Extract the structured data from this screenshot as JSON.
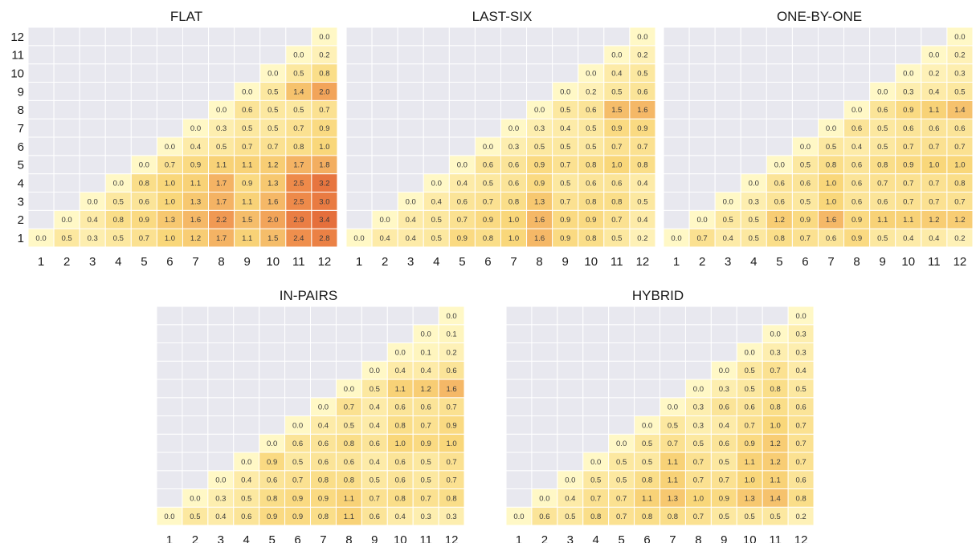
{
  "colors": {
    "empty_cell": "#e8e8ef",
    "cell_border": "#ffffff",
    "low": "#fff8c6",
    "mid": "#f9d77a",
    "high": "#ee8a4a",
    "max": "#e56f3c"
  },
  "ticks": [
    "1",
    "2",
    "3",
    "4",
    "5",
    "6",
    "7",
    "8",
    "9",
    "10",
    "11",
    "12"
  ],
  "chart_data": [
    {
      "type": "heatmap",
      "title": "FLAT",
      "rows": [
        "1",
        "2",
        "3",
        "4",
        "5",
        "6",
        "7",
        "8",
        "9",
        "10",
        "11",
        "12"
      ],
      "columns": [
        "1",
        "2",
        "3",
        "4",
        "5",
        "6",
        "7",
        "8",
        "9",
        "10",
        "11",
        "12"
      ],
      "values": [
        [
          "0.0",
          "0.5",
          "0.3",
          "0.5",
          "0.7",
          "1.0",
          "1.2",
          "1.7",
          "1.1",
          "1.5",
          "2.4",
          "2.8"
        ],
        [
          null,
          "0.0",
          "0.4",
          "0.8",
          "0.9",
          "1.3",
          "1.6",
          "2.2",
          "1.5",
          "2.0",
          "2.9",
          "3.4"
        ],
        [
          null,
          null,
          "0.0",
          "0.5",
          "0.6",
          "1.0",
          "1.3",
          "1.7",
          "1.1",
          "1.6",
          "2.5",
          "3.0"
        ],
        [
          null,
          null,
          null,
          "0.0",
          "0.8",
          "1.0",
          "1.1",
          "1.7",
          "0.9",
          "1.3",
          "2.5",
          "3.2"
        ],
        [
          null,
          null,
          null,
          null,
          "0.0",
          "0.7",
          "0.9",
          "1.1",
          "1.1",
          "1.2",
          "1.7",
          "1.8"
        ],
        [
          null,
          null,
          null,
          null,
          null,
          "0.0",
          "0.4",
          "0.5",
          "0.7",
          "0.7",
          "0.8",
          "1.0"
        ],
        [
          null,
          null,
          null,
          null,
          null,
          null,
          "0.0",
          "0.3",
          "0.5",
          "0.5",
          "0.7",
          "0.9"
        ],
        [
          null,
          null,
          null,
          null,
          null,
          null,
          null,
          "0.0",
          "0.6",
          "0.5",
          "0.5",
          "0.7"
        ],
        [
          null,
          null,
          null,
          null,
          null,
          null,
          null,
          null,
          "0.0",
          "0.5",
          "1.4",
          "2.0"
        ],
        [
          null,
          null,
          null,
          null,
          null,
          null,
          null,
          null,
          null,
          "0.0",
          "0.5",
          "0.8"
        ],
        [
          null,
          null,
          null,
          null,
          null,
          null,
          null,
          null,
          null,
          null,
          "0.0",
          "0.2"
        ],
        [
          null,
          null,
          null,
          null,
          null,
          null,
          null,
          null,
          null,
          null,
          null,
          "0.0"
        ]
      ]
    },
    {
      "type": "heatmap",
      "title": "LAST-SIX",
      "rows": [
        "1",
        "2",
        "3",
        "4",
        "5",
        "6",
        "7",
        "8",
        "9",
        "10",
        "11",
        "12"
      ],
      "columns": [
        "1",
        "2",
        "3",
        "4",
        "5",
        "6",
        "7",
        "8",
        "9",
        "10",
        "11",
        "12"
      ],
      "values": [
        [
          "0.0",
          "0.4",
          "0.4",
          "0.5",
          "0.9",
          "0.8",
          "1.0",
          "1.6",
          "0.9",
          "0.8",
          "0.5",
          "0.2"
        ],
        [
          null,
          "0.0",
          "0.4",
          "0.5",
          "0.7",
          "0.9",
          "1.0",
          "1.6",
          "0.9",
          "0.9",
          "0.7",
          "0.4"
        ],
        [
          null,
          null,
          "0.0",
          "0.4",
          "0.6",
          "0.7",
          "0.8",
          "1.3",
          "0.7",
          "0.8",
          "0.8",
          "0.5"
        ],
        [
          null,
          null,
          null,
          "0.0",
          "0.4",
          "0.5",
          "0.6",
          "0.9",
          "0.5",
          "0.6",
          "0.6",
          "0.4"
        ],
        [
          null,
          null,
          null,
          null,
          "0.0",
          "0.6",
          "0.6",
          "0.9",
          "0.7",
          "0.8",
          "1.0",
          "0.8"
        ],
        [
          null,
          null,
          null,
          null,
          null,
          "0.0",
          "0.3",
          "0.5",
          "0.5",
          "0.5",
          "0.7",
          "0.7"
        ],
        [
          null,
          null,
          null,
          null,
          null,
          null,
          "0.0",
          "0.3",
          "0.4",
          "0.5",
          "0.9",
          "0.9"
        ],
        [
          null,
          null,
          null,
          null,
          null,
          null,
          null,
          "0.0",
          "0.5",
          "0.6",
          "1.5",
          "1.6"
        ],
        [
          null,
          null,
          null,
          null,
          null,
          null,
          null,
          null,
          "0.0",
          "0.2",
          "0.5",
          "0.6"
        ],
        [
          null,
          null,
          null,
          null,
          null,
          null,
          null,
          null,
          null,
          "0.0",
          "0.4",
          "0.5"
        ],
        [
          null,
          null,
          null,
          null,
          null,
          null,
          null,
          null,
          null,
          null,
          "0.0",
          "0.2"
        ],
        [
          null,
          null,
          null,
          null,
          null,
          null,
          null,
          null,
          null,
          null,
          null,
          "0.0"
        ]
      ]
    },
    {
      "type": "heatmap",
      "title": "ONE-BY-ONE",
      "rows": [
        "1",
        "2",
        "3",
        "4",
        "5",
        "6",
        "7",
        "8",
        "9",
        "10",
        "11",
        "12"
      ],
      "columns": [
        "1",
        "2",
        "3",
        "4",
        "5",
        "6",
        "7",
        "8",
        "9",
        "10",
        "11",
        "12"
      ],
      "values": [
        [
          "0.0",
          "0.7",
          "0.4",
          "0.5",
          "0.8",
          "0.7",
          "0.6",
          "0.9",
          "0.5",
          "0.4",
          "0.4",
          "0.2"
        ],
        [
          null,
          "0.0",
          "0.5",
          "0.5",
          "1.2",
          "0.9",
          "1.6",
          "0.9",
          "1.1",
          "1.1",
          "1.2",
          "1.2"
        ],
        [
          null,
          null,
          "0.0",
          "0.3",
          "0.6",
          "0.5",
          "1.0",
          "0.6",
          "0.6",
          "0.7",
          "0.7",
          "0.7"
        ],
        [
          null,
          null,
          null,
          "0.0",
          "0.6",
          "0.6",
          "1.0",
          "0.6",
          "0.7",
          "0.7",
          "0.7",
          "0.8"
        ],
        [
          null,
          null,
          null,
          null,
          "0.0",
          "0.5",
          "0.8",
          "0.6",
          "0.8",
          "0.9",
          "1.0",
          "1.0"
        ],
        [
          null,
          null,
          null,
          null,
          null,
          "0.0",
          "0.5",
          "0.4",
          "0.5",
          "0.7",
          "0.7",
          "0.7"
        ],
        [
          null,
          null,
          null,
          null,
          null,
          null,
          "0.0",
          "0.6",
          "0.5",
          "0.6",
          "0.6",
          "0.6"
        ],
        [
          null,
          null,
          null,
          null,
          null,
          null,
          null,
          "0.0",
          "0.6",
          "0.9",
          "1.1",
          "1.4"
        ],
        [
          null,
          null,
          null,
          null,
          null,
          null,
          null,
          null,
          "0.0",
          "0.3",
          "0.4",
          "0.5"
        ],
        [
          null,
          null,
          null,
          null,
          null,
          null,
          null,
          null,
          null,
          "0.0",
          "0.2",
          "0.3"
        ],
        [
          null,
          null,
          null,
          null,
          null,
          null,
          null,
          null,
          null,
          null,
          "0.0",
          "0.2"
        ],
        [
          null,
          null,
          null,
          null,
          null,
          null,
          null,
          null,
          null,
          null,
          null,
          "0.0"
        ]
      ]
    },
    {
      "type": "heatmap",
      "title": "IN-PAIRS",
      "rows": [
        "1",
        "2",
        "3",
        "4",
        "5",
        "6",
        "7",
        "8",
        "9",
        "10",
        "11",
        "12"
      ],
      "columns": [
        "1",
        "2",
        "3",
        "4",
        "5",
        "6",
        "7",
        "8",
        "9",
        "10",
        "11",
        "12"
      ],
      "values": [
        [
          "0.0",
          "0.5",
          "0.4",
          "0.6",
          "0.9",
          "0.9",
          "0.8",
          "1.1",
          "0.6",
          "0.4",
          "0.3",
          "0.3"
        ],
        [
          null,
          "0.0",
          "0.3",
          "0.5",
          "0.8",
          "0.9",
          "0.9",
          "1.1",
          "0.7",
          "0.8",
          "0.7",
          "0.8"
        ],
        [
          null,
          null,
          "0.0",
          "0.4",
          "0.6",
          "0.7",
          "0.8",
          "0.8",
          "0.5",
          "0.6",
          "0.5",
          "0.7"
        ],
        [
          null,
          null,
          null,
          "0.0",
          "0.9",
          "0.5",
          "0.6",
          "0.6",
          "0.4",
          "0.6",
          "0.5",
          "0.7"
        ],
        [
          null,
          null,
          null,
          null,
          "0.0",
          "0.6",
          "0.6",
          "0.8",
          "0.6",
          "1.0",
          "0.9",
          "1.0"
        ],
        [
          null,
          null,
          null,
          null,
          null,
          "0.0",
          "0.4",
          "0.5",
          "0.4",
          "0.8",
          "0.7",
          "0.9"
        ],
        [
          null,
          null,
          null,
          null,
          null,
          null,
          "0.0",
          "0.7",
          "0.4",
          "0.6",
          "0.6",
          "0.7"
        ],
        [
          null,
          null,
          null,
          null,
          null,
          null,
          null,
          "0.0",
          "0.5",
          "1.1",
          "1.2",
          "1.6"
        ],
        [
          null,
          null,
          null,
          null,
          null,
          null,
          null,
          null,
          "0.0",
          "0.4",
          "0.4",
          "0.6"
        ],
        [
          null,
          null,
          null,
          null,
          null,
          null,
          null,
          null,
          null,
          "0.0",
          "0.1",
          "0.2"
        ],
        [
          null,
          null,
          null,
          null,
          null,
          null,
          null,
          null,
          null,
          null,
          "0.0",
          "0.1"
        ],
        [
          null,
          null,
          null,
          null,
          null,
          null,
          null,
          null,
          null,
          null,
          null,
          "0.0"
        ]
      ]
    },
    {
      "type": "heatmap",
      "title": "HYBRID",
      "rows": [
        "1",
        "2",
        "3",
        "4",
        "5",
        "6",
        "7",
        "8",
        "9",
        "10",
        "11",
        "12"
      ],
      "columns": [
        "1",
        "2",
        "3",
        "4",
        "5",
        "6",
        "7",
        "8",
        "9",
        "10",
        "11",
        "12"
      ],
      "values": [
        [
          "0.0",
          "0.6",
          "0.5",
          "0.8",
          "0.7",
          "0.8",
          "0.8",
          "0.7",
          "0.5",
          "0.5",
          "0.5",
          "0.2"
        ],
        [
          null,
          "0.0",
          "0.4",
          "0.7",
          "0.7",
          "1.1",
          "1.3",
          "1.0",
          "0.9",
          "1.3",
          "1.4",
          "0.8"
        ],
        [
          null,
          null,
          "0.0",
          "0.5",
          "0.5",
          "0.8",
          "1.1",
          "0.7",
          "0.7",
          "1.0",
          "1.1",
          "0.6"
        ],
        [
          null,
          null,
          null,
          "0.0",
          "0.5",
          "0.5",
          "1.1",
          "0.7",
          "0.5",
          "1.1",
          "1.2",
          "0.7"
        ],
        [
          null,
          null,
          null,
          null,
          "0.0",
          "0.5",
          "0.7",
          "0.5",
          "0.6",
          "0.9",
          "1.2",
          "0.7"
        ],
        [
          null,
          null,
          null,
          null,
          null,
          "0.0",
          "0.5",
          "0.3",
          "0.4",
          "0.7",
          "1.0",
          "0.7"
        ],
        [
          null,
          null,
          null,
          null,
          null,
          null,
          "0.0",
          "0.3",
          "0.6",
          "0.6",
          "0.8",
          "0.6"
        ],
        [
          null,
          null,
          null,
          null,
          null,
          null,
          null,
          "0.0",
          "0.3",
          "0.5",
          "0.8",
          "0.5"
        ],
        [
          null,
          null,
          null,
          null,
          null,
          null,
          null,
          null,
          "0.0",
          "0.5",
          "0.7",
          "0.4"
        ],
        [
          null,
          null,
          null,
          null,
          null,
          null,
          null,
          null,
          null,
          "0.0",
          "0.3",
          "0.3"
        ],
        [
          null,
          null,
          null,
          null,
          null,
          null,
          null,
          null,
          null,
          null,
          "0.0",
          "0.3"
        ],
        [
          null,
          null,
          null,
          null,
          null,
          null,
          null,
          null,
          null,
          null,
          null,
          "0.0"
        ]
      ]
    }
  ]
}
